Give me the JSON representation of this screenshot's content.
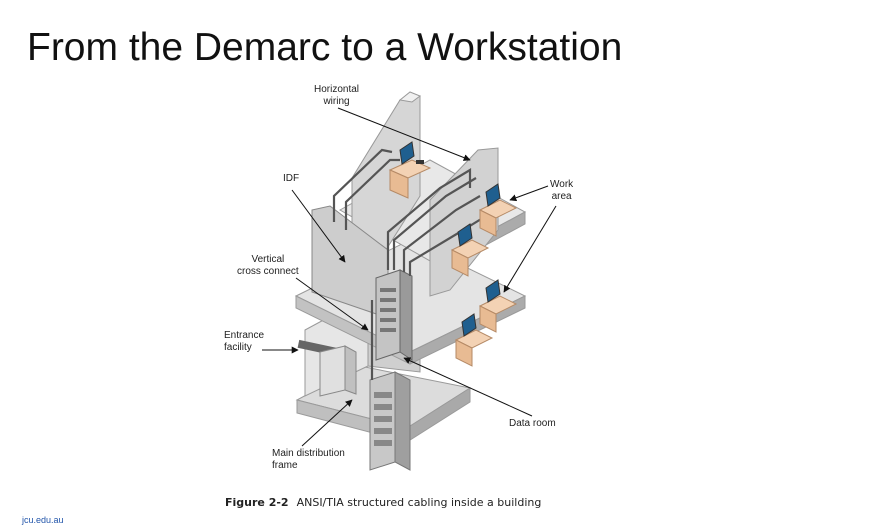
{
  "slide": {
    "title": "From the Demarc to a Workstation"
  },
  "labels": {
    "horizontal_wiring": [
      "Horizontal",
      "wiring"
    ],
    "idf": "IDF",
    "vertical_cross_connect": [
      "Vertical",
      "cross connect"
    ],
    "entrance_facility": [
      "Entrance",
      "facility"
    ],
    "main_distribution_frame": [
      "Main distribution",
      "frame"
    ],
    "work_area": [
      "Work",
      "area"
    ],
    "data_room": "Data room"
  },
  "caption": {
    "figure": "Figure 2-2",
    "text": "ANSI/TIA structured cabling inside a building"
  },
  "footer": {
    "url": "jcu.edu.au"
  }
}
